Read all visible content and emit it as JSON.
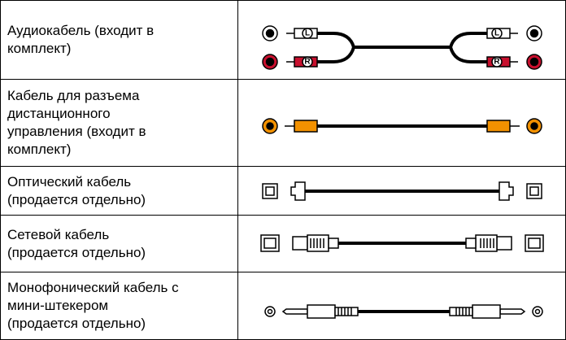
{
  "table": {
    "rows": [
      {
        "lines": [
          "Аудиокабель (входит в",
          "комплект)"
        ],
        "plug_labels": [
          "L",
          "R"
        ]
      },
      {
        "lines": [
          "Кабель для разъема",
          "дистанционного",
          "управления (входит в",
          "комплект)"
        ]
      },
      {
        "lines": [
          "Оптический кабель",
          "(продается отдельно)"
        ]
      },
      {
        "lines": [
          "Сетевой кабель",
          "(продается отдельно)"
        ]
      },
      {
        "lines": [
          "Монофонический кабель с",
          "мини-штекером",
          "(продается отдельно)"
        ]
      }
    ]
  }
}
